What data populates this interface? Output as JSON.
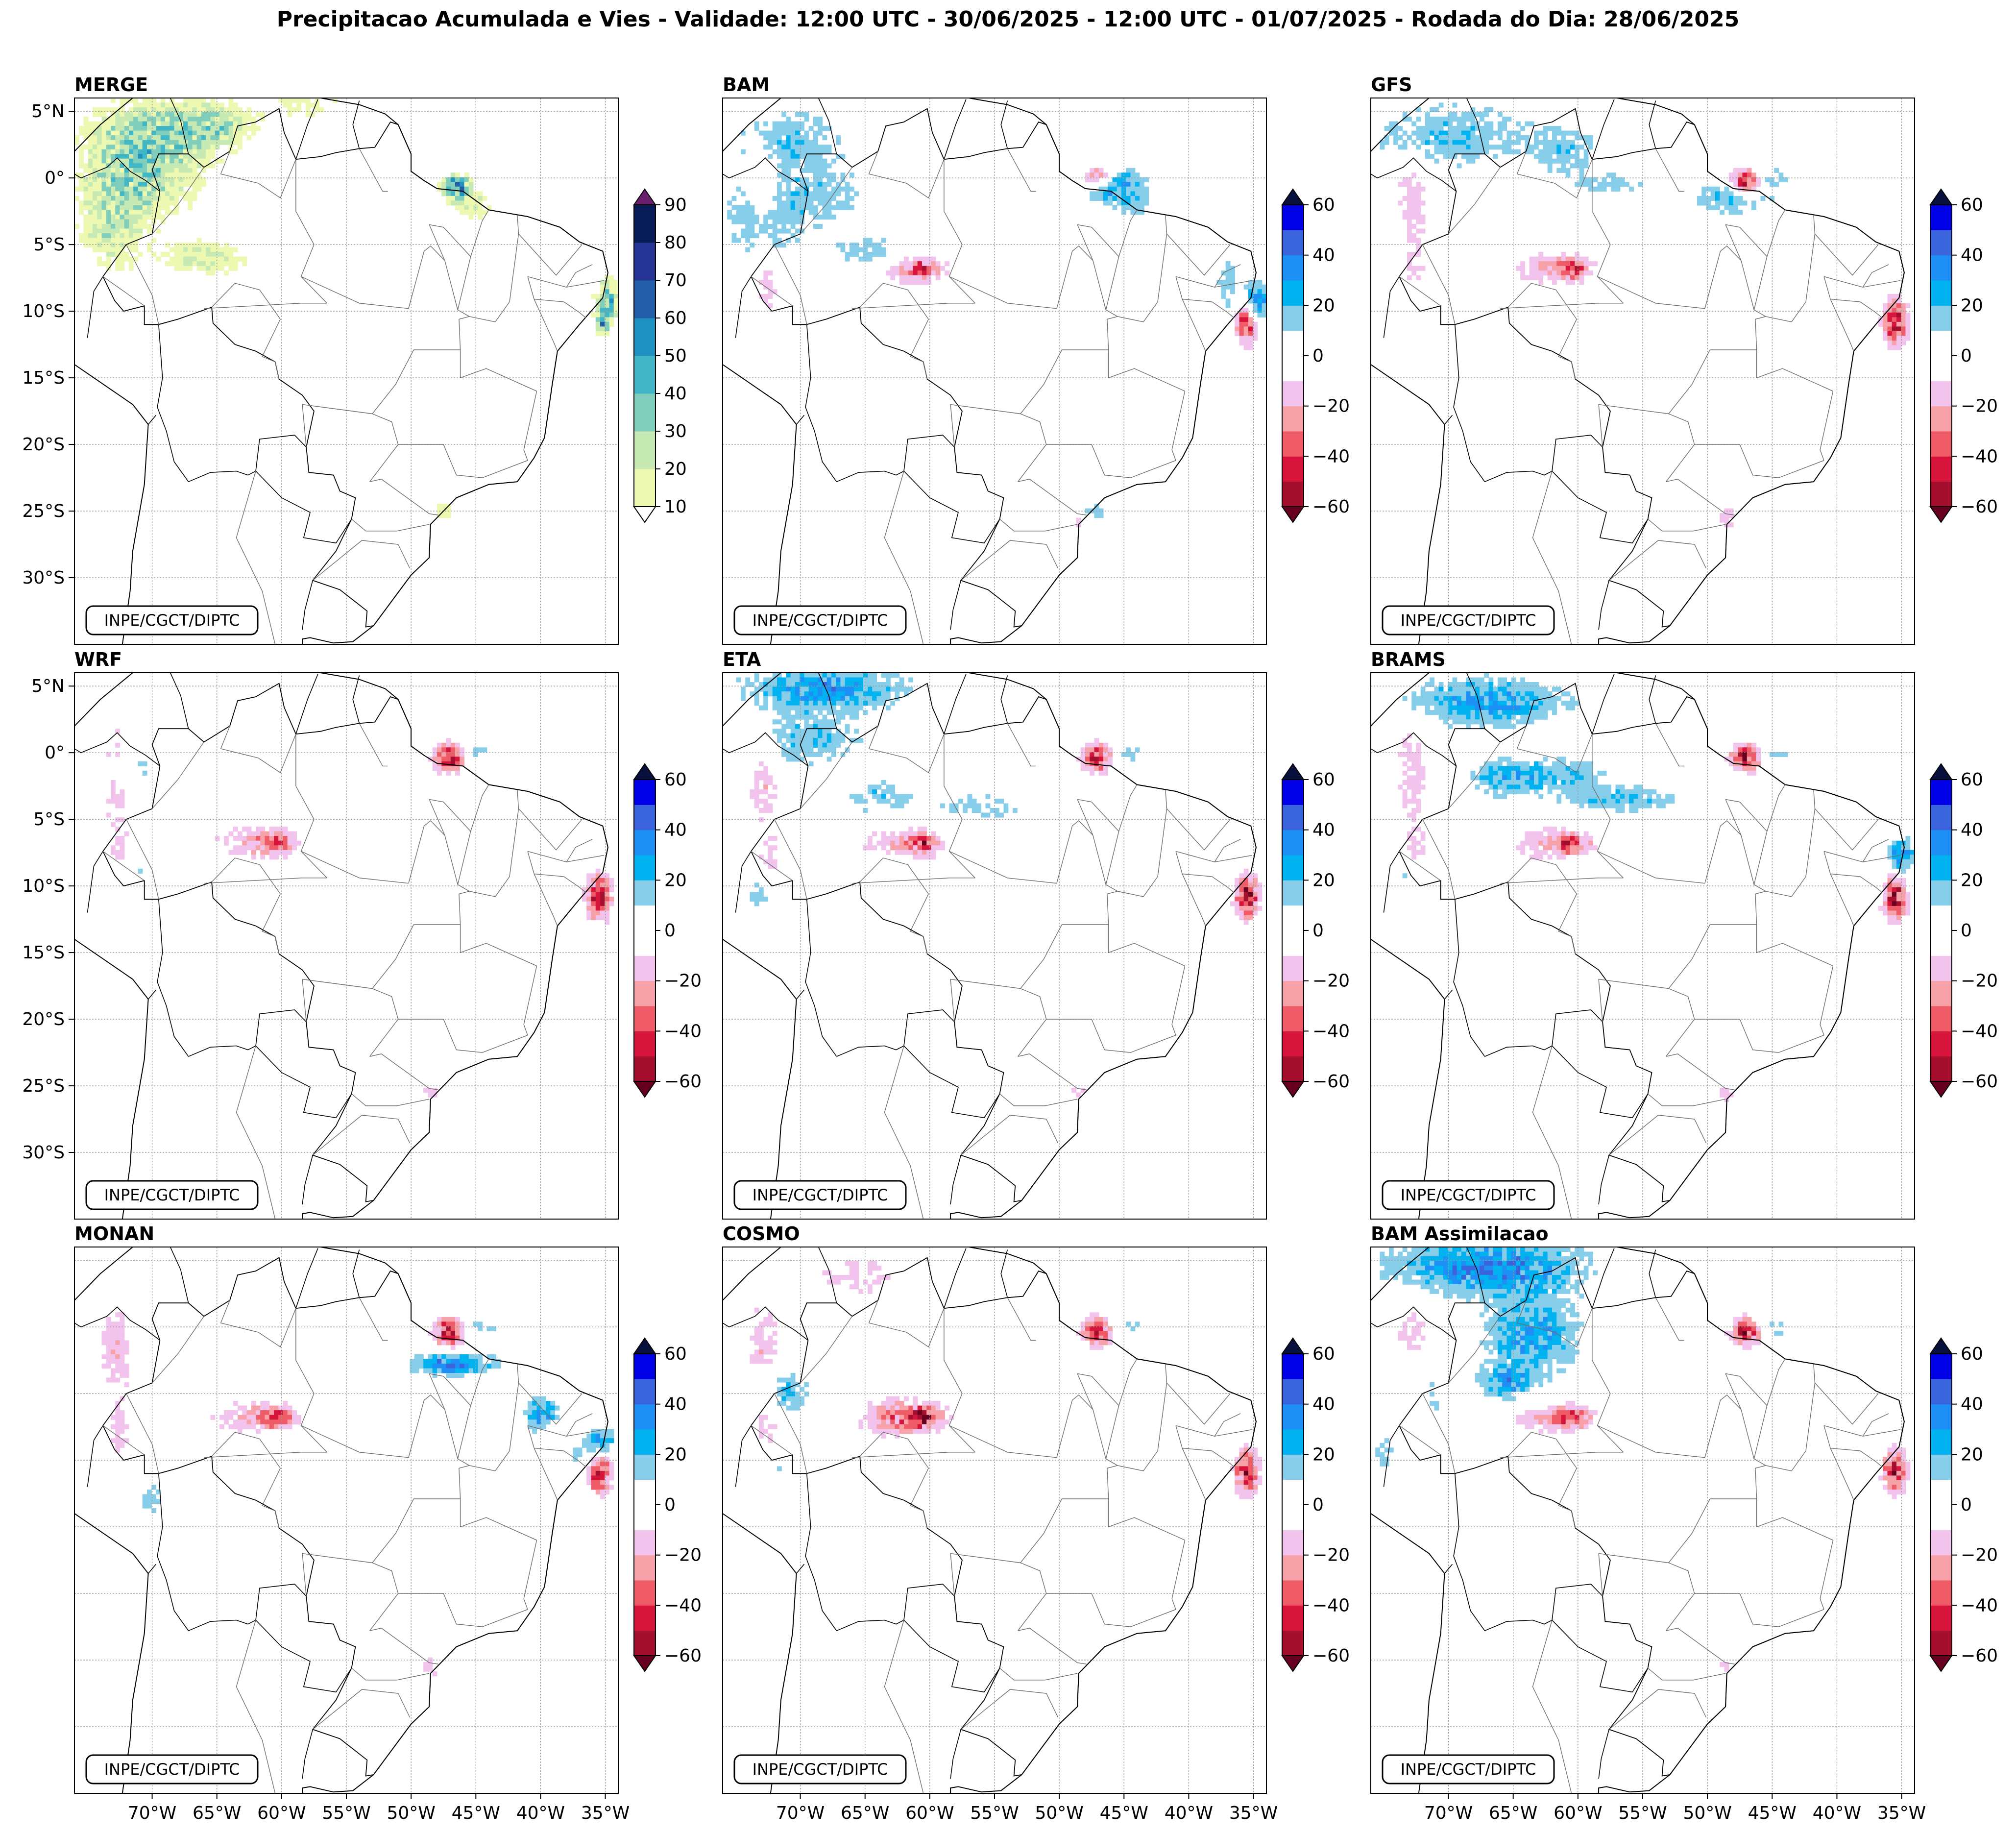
{
  "title": "Precipitacao Acumulada e Vies - Validade: 12:00 UTC - 30/06/2025 - 12:00 UTC - 01/07/2025 - Rodada do Dia: 28/06/2025",
  "credit": "INPE/CGCT/DIPTC",
  "map_extent": {
    "lon": [
      -76,
      -34
    ],
    "lat": [
      -35,
      6
    ]
  },
  "lat_ticks": [
    {
      "value": 5,
      "label": "5°N"
    },
    {
      "value": 0,
      "label": "0°"
    },
    {
      "value": -5,
      "label": "5°S"
    },
    {
      "value": -10,
      "label": "10°S"
    },
    {
      "value": -15,
      "label": "15°S"
    },
    {
      "value": -20,
      "label": "20°S"
    },
    {
      "value": -25,
      "label": "25°S"
    },
    {
      "value": -30,
      "label": "30°S"
    }
  ],
  "lon_ticks": [
    {
      "value": -70,
      "label": "70°W"
    },
    {
      "value": -65,
      "label": "65°W"
    },
    {
      "value": -60,
      "label": "60°W"
    },
    {
      "value": -55,
      "label": "55°W"
    },
    {
      "value": -50,
      "label": "50°W"
    },
    {
      "value": -45,
      "label": "45°W"
    },
    {
      "value": -40,
      "label": "40°W"
    },
    {
      "value": -35,
      "label": "35°W"
    }
  ],
  "colorbars": {
    "precip": {
      "levels": [
        10,
        20,
        30,
        40,
        50,
        60,
        70,
        80,
        90
      ],
      "tick_labels": [
        "10",
        "20",
        "30",
        "40",
        "50",
        "60",
        "70",
        "80",
        "90"
      ],
      "colors": [
        "#edf8b1",
        "#c7e9b4",
        "#7fcdbb",
        "#41b6c4",
        "#1d91c0",
        "#225ea8",
        "#253494",
        "#081d58"
      ],
      "under_color": "#ffffff",
      "over_color": "#6a1f6f"
    },
    "bias": {
      "levels": [
        -60,
        -50,
        -40,
        -30,
        -20,
        -10,
        0,
        10,
        20,
        30,
        40,
        50,
        60
      ],
      "tick_labels": [
        "−60",
        "−40",
        "−20",
        "0",
        "20",
        "40",
        "60"
      ],
      "tick_values": [
        -60,
        -40,
        -20,
        0,
        20,
        40,
        60
      ],
      "colors": [
        "#a50f2e",
        "#d7143c",
        "#ef5b66",
        "#f7a1a8",
        "#f2c3ec",
        "#ffffff",
        "#ffffff",
        "#87ceeb",
        "#00b2f0",
        "#1e8ff5",
        "#3a64dc",
        "#0000e6"
      ],
      "under_color": "#67001f",
      "over_color": "#08103d"
    }
  },
  "panels": [
    {
      "title": "MERGE",
      "scale": "precip"
    },
    {
      "title": "BAM",
      "scale": "bias"
    },
    {
      "title": "GFS",
      "scale": "bias"
    },
    {
      "title": "WRF",
      "scale": "bias"
    },
    {
      "title": "ETA",
      "scale": "bias"
    },
    {
      "title": "BRAMS",
      "scale": "bias"
    },
    {
      "title": "MONAN",
      "scale": "bias"
    },
    {
      "title": "COSMO",
      "scale": "bias"
    },
    {
      "title": "BAM Assimilacao",
      "scale": "bias"
    }
  ]
}
